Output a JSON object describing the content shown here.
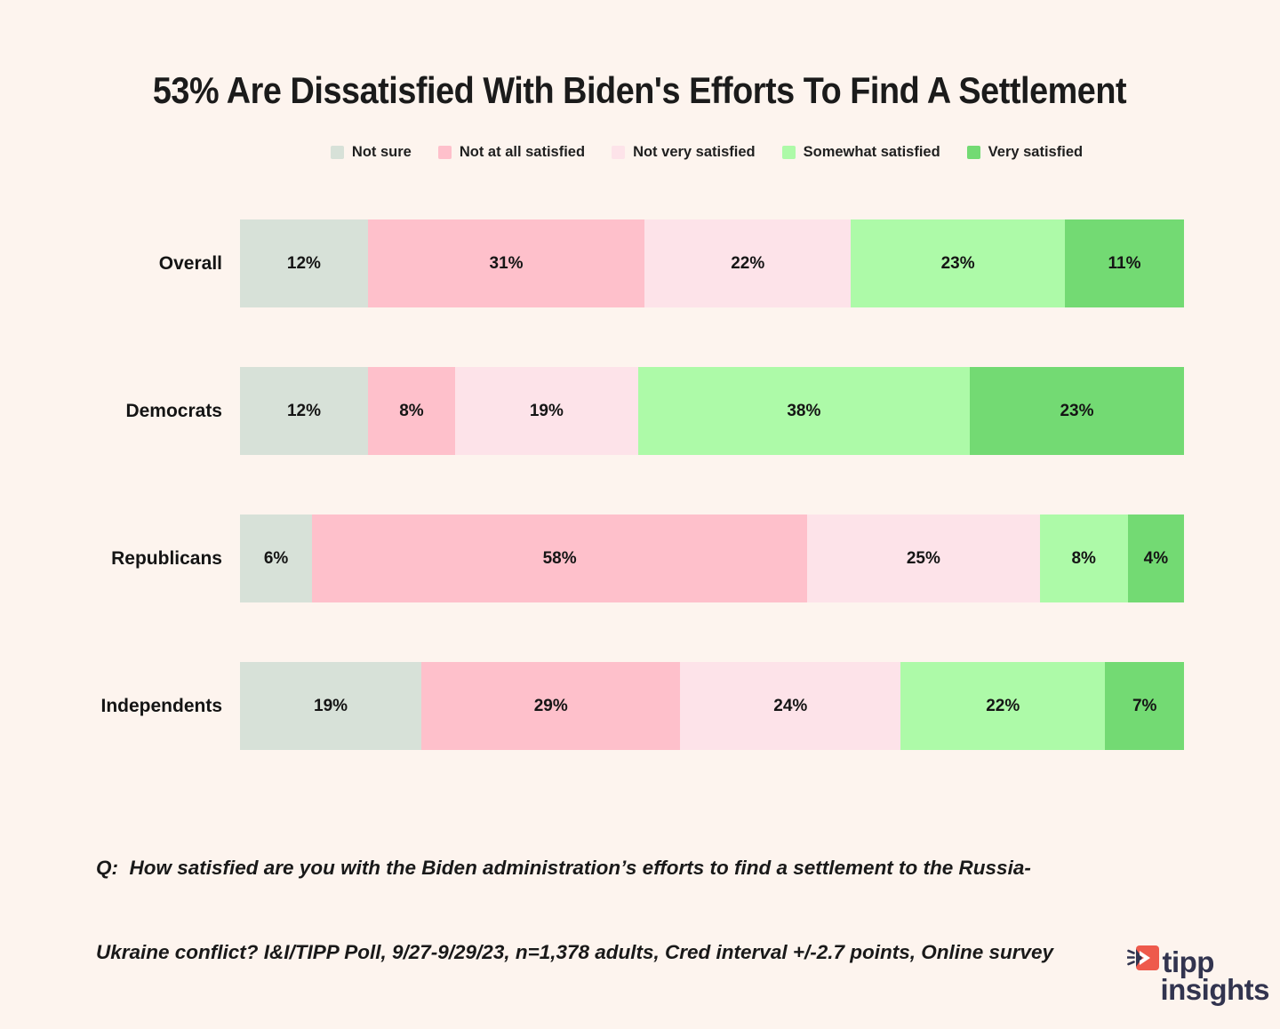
{
  "title": "53% Are Dissatisfied With Biden's Efforts To Find A Settlement",
  "chart_data": {
    "type": "bar",
    "stacked": true,
    "orientation": "horizontal",
    "legend_position": "top",
    "value_suffix": "%",
    "xlim": [
      0,
      100
    ],
    "categories": [
      "Overall",
      "Democrats",
      "Republicans",
      "Independents"
    ],
    "series": [
      {
        "name": "Not sure",
        "color": "#d7e1d8",
        "values": [
          12,
          12,
          6,
          19
        ]
      },
      {
        "name": "Not at all satisfied",
        "color": "#fec0cb",
        "values": [
          31,
          8,
          58,
          29
        ]
      },
      {
        "name": "Not very satisfied",
        "color": "#fde3e9",
        "values": [
          22,
          19,
          25,
          24
        ]
      },
      {
        "name": "Somewhat satisfied",
        "color": "#adfaa8",
        "values": [
          23,
          38,
          8,
          22
        ]
      },
      {
        "name": "Very satisfied",
        "color": "#73da73",
        "values": [
          11,
          23,
          4,
          7
        ]
      }
    ]
  },
  "footer": {
    "line1": "Q:  How satisfied are you with the Biden administration’s efforts to find a settlement to the Russia-",
    "line2": "Ukraine conflict? I&I/TIPP Poll, 9/27-9/29/23, n=1,378 adults, Cred interval +/-2.7 points, Online survey"
  },
  "logo": {
    "line1": "tipp",
    "line2": "insights",
    "navy": "#32344f",
    "red": "#ee5a4c"
  }
}
